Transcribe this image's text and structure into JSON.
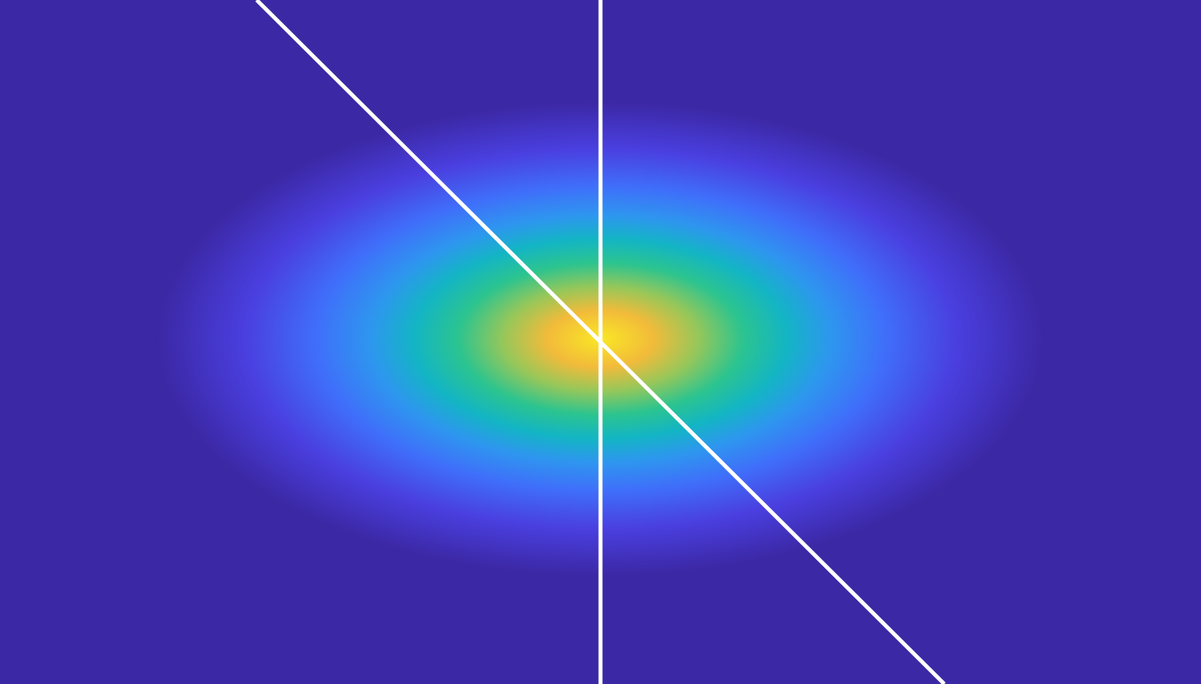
{
  "chart_data": {
    "type": "heatmap",
    "title": "",
    "xlabel": "",
    "ylabel": "",
    "colormap": "parula",
    "colors": {
      "background": "#3b28a4",
      "stops": [
        "#3b28a4",
        "#4a3fe0",
        "#3f6ffa",
        "#2e96ef",
        "#13b5c4",
        "#2cc48f",
        "#96c75a",
        "#f2bb3a",
        "#f9e725"
      ],
      "line": "#ffffff"
    },
    "peak": 1.0,
    "grid": false,
    "legend": "none",
    "cross_section_lines": [
      {
        "name": "",
        "orientation": "vertical"
      },
      {
        "name": "",
        "orientation": "diagonal"
      }
    ]
  }
}
